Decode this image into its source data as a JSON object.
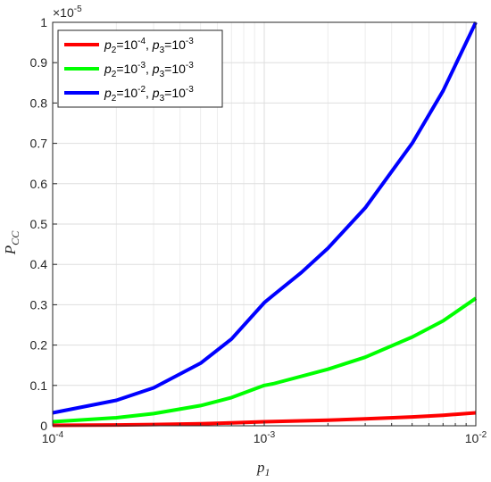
{
  "chart_data": {
    "type": "line",
    "xscale": "log",
    "xlim": [
      0.0001,
      0.01
    ],
    "ylim": [
      0,
      1
    ],
    "y_multiplier_label": "×10",
    "y_multiplier_exp": "-5",
    "xlabel_base": "p",
    "xlabel_sub": "1",
    "ylabel_base": "P",
    "ylabel_sub": "CC",
    "grid": true,
    "legend_position": "top-left",
    "x_ticks": [
      {
        "value": 0.0001,
        "base": "10",
        "exp": "-4"
      },
      {
        "value": 0.001,
        "base": "10",
        "exp": "-3"
      },
      {
        "value": 0.01,
        "base": "10",
        "exp": "-2"
      }
    ],
    "y_ticks": [
      {
        "value": 0,
        "label": "0"
      },
      {
        "value": 0.1,
        "label": "0.1"
      },
      {
        "value": 0.2,
        "label": "0.2"
      },
      {
        "value": 0.3,
        "label": "0.3"
      },
      {
        "value": 0.4,
        "label": "0.4"
      },
      {
        "value": 0.5,
        "label": "0.5"
      },
      {
        "value": 0.6,
        "label": "0.6"
      },
      {
        "value": 0.7,
        "label": "0.7"
      },
      {
        "value": 0.8,
        "label": "0.8"
      },
      {
        "value": 0.9,
        "label": "0.9"
      },
      {
        "value": 1,
        "label": "1"
      }
    ],
    "series": [
      {
        "color": "#ff0000",
        "legend": {
          "a_base": "p",
          "a_sub": "2",
          "a_val": "=10",
          "a_exp": "-4",
          "sep": ", ",
          "b_base": "p",
          "b_sub": "3",
          "b_val": "=10",
          "b_exp": "-3"
        },
        "x": [
          0.0001,
          0.0002,
          0.0003,
          0.0005,
          0.0007,
          0.001,
          0.002,
          0.003,
          0.005,
          0.007,
          0.01
        ],
        "y": [
          0.001,
          0.002,
          0.003,
          0.005,
          0.007,
          0.01,
          0.014,
          0.017,
          0.022,
          0.026,
          0.032
        ]
      },
      {
        "color": "#00ff00",
        "legend": {
          "a_base": "p",
          "a_sub": "2",
          "a_val": "=10",
          "a_exp": "-3",
          "sep": ", ",
          "b_base": "p",
          "b_sub": "3",
          "b_val": "=10",
          "b_exp": "-3"
        },
        "x": [
          0.0001,
          0.0002,
          0.0003,
          0.0005,
          0.0007,
          0.001,
          0.0011,
          0.002,
          0.003,
          0.005,
          0.007,
          0.01
        ],
        "y": [
          0.01,
          0.02,
          0.03,
          0.05,
          0.07,
          0.1,
          0.104,
          0.14,
          0.17,
          0.22,
          0.26,
          0.316
        ]
      },
      {
        "color": "#0000ff",
        "legend": {
          "a_base": "p",
          "a_sub": "2",
          "a_val": "=10",
          "a_exp": "-2",
          "sep": ", ",
          "b_base": "p",
          "b_sub": "3",
          "b_val": "=10",
          "b_exp": "-3"
        },
        "x": [
          0.0001,
          0.0002,
          0.0003,
          0.0005,
          0.0007,
          0.001,
          0.0011,
          0.0015,
          0.002,
          0.003,
          0.005,
          0.007,
          0.01
        ],
        "y": [
          0.032,
          0.063,
          0.094,
          0.155,
          0.215,
          0.305,
          0.323,
          0.38,
          0.44,
          0.54,
          0.7,
          0.83,
          1.0
        ]
      }
    ]
  }
}
